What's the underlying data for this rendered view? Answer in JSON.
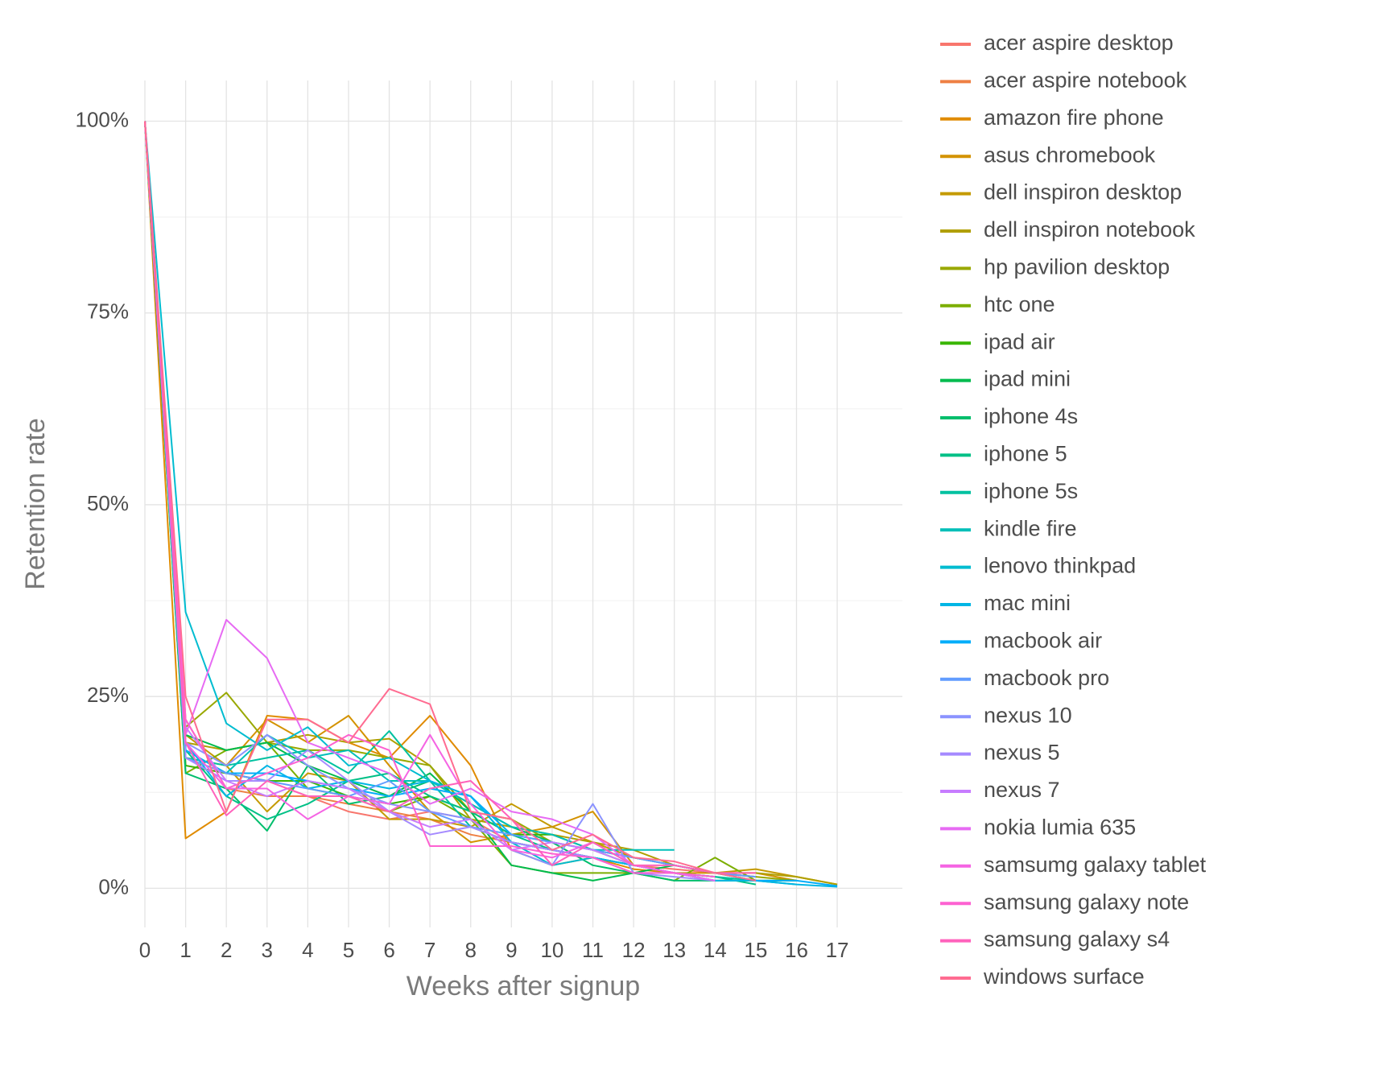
{
  "chart_data": {
    "type": "line",
    "x_label": "Weeks after signup",
    "y_label": "Retention rate",
    "x": [
      0,
      1,
      2,
      3,
      4,
      5,
      6,
      7,
      8,
      9,
      10,
      11,
      12,
      13,
      14,
      15,
      16,
      17
    ],
    "xlim": [
      0,
      18.6
    ],
    "xticks": [
      0,
      1,
      2,
      3,
      4,
      5,
      6,
      7,
      8,
      9,
      10,
      11,
      12,
      13,
      14,
      15,
      16,
      17
    ],
    "ylim": [
      -5.1,
      105.3
    ],
    "yticks": [
      {
        "value": 0,
        "label": "0%"
      },
      {
        "value": 25,
        "label": "25%"
      },
      {
        "value": 50,
        "label": "50%"
      },
      {
        "value": 75,
        "label": "75%"
      },
      {
        "value": 100,
        "label": "100%"
      }
    ],
    "yminor": [
      12.5,
      37.5,
      62.5,
      87.5
    ],
    "grid": true,
    "legend": "right",
    "series": [
      {
        "name": "acer aspire desktop",
        "color": "#F8766D",
        "values": [
          100,
          16,
          15,
          14,
          12,
          10,
          9,
          10,
          9,
          6,
          5,
          4,
          3,
          2.5,
          2,
          1.5,
          null,
          null
        ]
      },
      {
        "name": "acer aspire notebook",
        "color": "#EE8044",
        "values": [
          100,
          22,
          13,
          12,
          12,
          11,
          10,
          9,
          7,
          6,
          5,
          4,
          3,
          2,
          1.5,
          null,
          null,
          null
        ]
      },
      {
        "name": "amazon fire phone",
        "color": "#E08B00",
        "values": [
          100,
          6.5,
          10,
          22.5,
          22,
          19,
          17,
          22.5,
          16,
          5,
          3,
          4,
          2.5,
          2,
          null,
          null,
          null,
          null
        ]
      },
      {
        "name": "asus chromebook",
        "color": "#D39200",
        "values": [
          100,
          17,
          16,
          22,
          19,
          22.5,
          16,
          10,
          6,
          7,
          8,
          10,
          3,
          2,
          2,
          2,
          1,
          null
        ]
      },
      {
        "name": "dell inspiron desktop",
        "color": "#C49A00",
        "values": [
          100,
          20,
          16,
          10,
          15,
          14,
          9,
          9,
          8,
          11,
          8,
          6,
          4,
          3,
          2,
          2.5,
          1.5,
          0.5
        ]
      },
      {
        "name": "dell inspiron notebook",
        "color": "#B09F00",
        "values": [
          100,
          19,
          18,
          19,
          20,
          19,
          19.5,
          16,
          9,
          8,
          7,
          6,
          5,
          3,
          2,
          2,
          1.5,
          0.5
        ]
      },
      {
        "name": "hp pavilion desktop",
        "color": "#99A800",
        "values": [
          100,
          21,
          25.5,
          19,
          18,
          18,
          17,
          16,
          10,
          9,
          6,
          5,
          4,
          3,
          2,
          1.5,
          1,
          null
        ]
      },
      {
        "name": "htc one",
        "color": "#7CAE00",
        "values": [
          100,
          15,
          18,
          19,
          13,
          12,
          10,
          12,
          9,
          3,
          2,
          2,
          2,
          1,
          4,
          1,
          1,
          null
        ]
      },
      {
        "name": "ipad air",
        "color": "#39B600",
        "values": [
          100,
          16,
          15,
          14,
          14,
          12,
          11,
          12,
          10,
          7,
          7,
          5,
          3,
          2,
          1,
          1,
          1,
          null
        ]
      },
      {
        "name": "ipad mini",
        "color": "#00BB4E",
        "values": [
          100,
          20,
          18,
          19,
          16,
          14,
          12,
          15,
          10,
          3,
          2,
          1,
          2,
          3,
          2,
          1,
          null,
          null
        ]
      },
      {
        "name": "iphone 4s",
        "color": "#00BE6C",
        "values": [
          100,
          15,
          13,
          7.5,
          16,
          11,
          12,
          14,
          11,
          8,
          6,
          3,
          2,
          1,
          1,
          1,
          null,
          null
        ]
      },
      {
        "name": "iphone 5",
        "color": "#00C086",
        "values": [
          100,
          18,
          12,
          9,
          11,
          14,
          15,
          12,
          10,
          7,
          5,
          4,
          3,
          2,
          1.5,
          0.5,
          null,
          null
        ]
      },
      {
        "name": "iphone 5s",
        "color": "#00C1A0",
        "values": [
          100,
          17,
          16,
          17,
          18,
          15,
          20.5,
          14,
          8,
          6,
          5,
          4,
          3,
          2,
          1.5,
          1,
          0.5,
          null
        ]
      },
      {
        "name": "kindle fire",
        "color": "#00BFB8",
        "values": [
          100,
          18,
          15,
          20,
          17,
          18,
          14,
          14,
          11,
          8,
          7,
          5,
          5,
          5,
          null,
          null,
          null,
          null
        ]
      },
      {
        "name": "lenovo thinkpad",
        "color": "#00BCD0",
        "values": [
          100,
          36,
          21.5,
          18,
          21,
          16,
          17,
          14,
          12,
          6,
          3,
          4,
          3,
          2,
          1,
          null,
          null,
          null
        ]
      },
      {
        "name": "mac mini",
        "color": "#00B6E5",
        "values": [
          100,
          19,
          12,
          16,
          13,
          14,
          13,
          14,
          12,
          6,
          5,
          4,
          3,
          2,
          1,
          1,
          0.5,
          0.2
        ]
      },
      {
        "name": "macbook air",
        "color": "#00ADFA",
        "values": [
          100,
          18,
          15,
          15,
          14,
          13,
          12,
          13,
          12,
          7,
          6,
          5,
          4,
          3,
          2,
          1,
          1,
          0.3
        ]
      },
      {
        "name": "macbook pro",
        "color": "#619CFF",
        "values": [
          100,
          17,
          15,
          14,
          13,
          12,
          14,
          10,
          8,
          7,
          6,
          5,
          4,
          3,
          2,
          1.5,
          null,
          null
        ]
      },
      {
        "name": "nexus 10",
        "color": "#8B93FF",
        "values": [
          100,
          19,
          16,
          20,
          16,
          13,
          11,
          10,
          9,
          5,
          3,
          11,
          2,
          2,
          1,
          null,
          null,
          null
        ]
      },
      {
        "name": "nexus 5",
        "color": "#A58AFF",
        "values": [
          100,
          17,
          14,
          14,
          18,
          14,
          10,
          7,
          8,
          6,
          5,
          4,
          2,
          1.5,
          1,
          null,
          null,
          null
        ]
      },
      {
        "name": "nexus 7",
        "color": "#C77CFF",
        "values": [
          100,
          21,
          14,
          12,
          14,
          13,
          10,
          8,
          9,
          5,
          6,
          5,
          3,
          2,
          1,
          null,
          null,
          null
        ]
      },
      {
        "name": "nokia lumia 635",
        "color": "#E76BF3",
        "values": [
          100,
          20,
          35,
          30,
          19,
          17,
          15,
          11,
          13,
          10,
          9,
          7,
          3,
          2,
          1,
          null,
          null,
          null
        ]
      },
      {
        "name": "samsumg galaxy tablet",
        "color": "#F564E3",
        "values": [
          100,
          19,
          13,
          13,
          9,
          12,
          11,
          20,
          11,
          5,
          4,
          6,
          3,
          2,
          null,
          null,
          null,
          null
        ]
      },
      {
        "name": "samsung galaxy note",
        "color": "#FD61D1",
        "values": [
          100,
          22,
          13,
          15,
          17,
          20,
          18,
          5.5,
          5.5,
          5.5,
          4.5,
          4,
          2,
          2,
          1.5,
          null,
          null,
          null
        ]
      },
      {
        "name": "samsung galaxy s4",
        "color": "#FF62BC",
        "values": [
          100,
          19,
          9.5,
          14,
          12,
          12,
          10,
          13,
          14,
          9,
          3,
          6,
          3,
          3,
          2,
          2,
          null,
          null
        ]
      },
      {
        "name": "windows surface",
        "color": "#FF6C91",
        "values": [
          100,
          25,
          10,
          22,
          22,
          19,
          26,
          24,
          10,
          9,
          5,
          7,
          4,
          3.5,
          2,
          1,
          null,
          null
        ]
      }
    ]
  }
}
